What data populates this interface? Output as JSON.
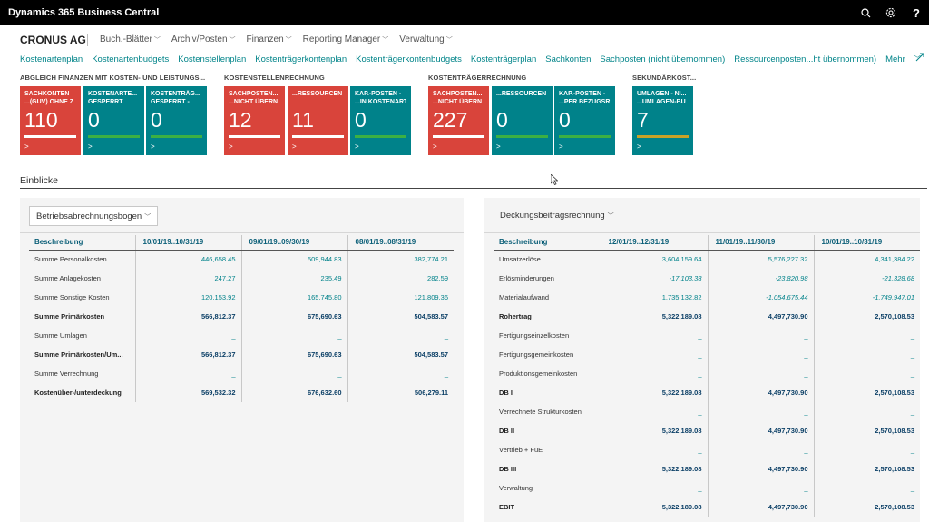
{
  "app": {
    "title": "Dynamics 365 Business Central"
  },
  "topbar": {
    "icons": [
      {
        "name": "search-icon",
        "glyph": "⌕"
      },
      {
        "name": "gear-icon",
        "glyph": "⚙"
      },
      {
        "name": "help-icon",
        "glyph": "?"
      }
    ]
  },
  "company": "CRONUS AG",
  "menu": [
    {
      "label": "Buch.-Blätter"
    },
    {
      "label": "Archiv/Posten"
    },
    {
      "label": "Finanzen"
    },
    {
      "label": "Reporting Manager"
    },
    {
      "label": "Verwaltung"
    }
  ],
  "links": [
    "Kostenartenplan",
    "Kostenartenbudgets",
    "Kostenstellenplan",
    "Kostenträgerkontenplan",
    "Kostenträgerkontenbudgets",
    "Kostenträgerplan",
    "Sachkonten",
    "Sachposten (nicht übernommen)",
    "Ressourcenposten...ht übernommen)",
    "Mehr"
  ],
  "tile_groups": [
    {
      "title": "ABGLEICH FINANZEN MIT KOSTEN- UND LEISTUNGS..."
    },
    {
      "title": "KOSTENSTELLENRECHNUNG"
    },
    {
      "title": "KOSTENTRÄGERRECHNUNG"
    },
    {
      "title": "SEKUNDÄRKOST..."
    }
  ],
  "tiles": [
    {
      "l1": "SACHKONTEN",
      "l2": "...(GUV) OHNE Z",
      "value": "110",
      "color": "red",
      "bar": "#ffffff"
    },
    {
      "l1": "KOSTENARTE...",
      "l2": "GESPERRT",
      "value": "0",
      "color": "teal",
      "bar": "#3cb043"
    },
    {
      "l1": "KOSTENTRÄG...",
      "l2": "GESPERRT -",
      "value": "0",
      "color": "teal",
      "bar": "#3cb043"
    },
    {
      "l1": "SACHPOSTEN...",
      "l2": "...NICHT ÜBERN",
      "value": "12",
      "color": "red",
      "bar": "#ffffff"
    },
    {
      "l1": "",
      "l2": "...RESSOURCEN",
      "value": "11",
      "color": "red",
      "bar": "#ffffff"
    },
    {
      "l1": "KAP.-POSTEN -",
      "l2": "...IN KOSTENART",
      "value": "0",
      "color": "teal",
      "bar": "#3cb043"
    },
    {
      "l1": "SACHPOSTEN...",
      "l2": "...NICHT ÜBERN",
      "value": "227",
      "color": "red",
      "bar": "#ffffff"
    },
    {
      "l1": "",
      "l2": "...RESSOURCEN",
      "value": "0",
      "color": "teal",
      "bar": "#3cb043"
    },
    {
      "l1": "KAP.-POSTEN -",
      "l2": "...PER BEZUGSR",
      "value": "0",
      "color": "teal",
      "bar": "#3cb043"
    },
    {
      "l1": "UMLAGEN - NI...",
      "l2": "...UMLAGEN-BU",
      "value": "7",
      "color": "teal",
      "bar": "#c9a227"
    }
  ],
  "section_title": "Einblicke",
  "left_panel": {
    "dropdown": "Betriebsabrechnungsbogen",
    "headers": [
      "Beschreibung",
      "10/01/19..10/31/19",
      "09/01/19..09/30/19",
      "08/01/19..08/31/19"
    ],
    "rows": [
      {
        "label": "Summe Personalkosten",
        "bold": false,
        "v": [
          "446,658.45",
          "509,944.83",
          "382,774.21"
        ]
      },
      {
        "label": "Summe Anlagekosten",
        "bold": false,
        "v": [
          "247.27",
          "235.49",
          "282.59"
        ]
      },
      {
        "label": "Summe Sonstige Kosten",
        "bold": false,
        "v": [
          "120,153.92",
          "165,745.80",
          "121,809.36"
        ]
      },
      {
        "label": "Summe Primärkosten",
        "bold": true,
        "v": [
          "566,812.37",
          "675,690.63",
          "504,583.57"
        ]
      },
      {
        "label": "Summe Umlagen",
        "bold": false,
        "v": [
          "_",
          "_",
          "_"
        ]
      },
      {
        "label": "Summe Primärkosten/Um...",
        "bold": true,
        "v": [
          "566,812.37",
          "675,690.63",
          "504,583.57"
        ]
      },
      {
        "label": "Summe Verrechnung",
        "bold": false,
        "v": [
          "_",
          "_",
          "_"
        ]
      },
      {
        "label": "Kostenüber-/unterdeckung",
        "bold": true,
        "v": [
          "569,532.32",
          "676,632.60",
          "506,279.11"
        ]
      }
    ]
  },
  "right_panel": {
    "dropdown": "Deckungsbeitragsrechnung",
    "headers": [
      "Beschreibung",
      "12/01/19..12/31/19",
      "11/01/19..11/30/19",
      "10/01/19..10/31/19"
    ],
    "rows": [
      {
        "label": "Umsatzerlöse",
        "bold": false,
        "v": [
          "3,604,159.64",
          "5,576,227.32",
          "4,341,384.22"
        ]
      },
      {
        "label": "Erlösminderungen",
        "bold": false,
        "v": [
          "-17,103.38",
          "-23,820.98",
          "-21,328.68"
        ]
      },
      {
        "label": "Materialaufwand",
        "bold": false,
        "v": [
          "1,735,132.82",
          "-1,054,675.44",
          "-1,749,947.01"
        ]
      },
      {
        "label": "Rohertrag",
        "bold": true,
        "v": [
          "5,322,189.08",
          "4,497,730.90",
          "2,570,108.53"
        ]
      },
      {
        "label": "Fertigungseinzelkosten",
        "bold": false,
        "v": [
          "_",
          "_",
          "_"
        ]
      },
      {
        "label": "Fertigungsgemeinkosten",
        "bold": false,
        "v": [
          "_",
          "_",
          "_"
        ]
      },
      {
        "label": "Produktionsgemeinkosten",
        "bold": false,
        "v": [
          "_",
          "_",
          "_"
        ]
      },
      {
        "label": "DB I",
        "bold": true,
        "v": [
          "5,322,189.08",
          "4,497,730.90",
          "2,570,108.53"
        ]
      },
      {
        "label": "Verrechnete Strukturkosten",
        "bold": false,
        "v": [
          "_",
          "_",
          "_"
        ]
      },
      {
        "label": "DB II",
        "bold": true,
        "v": [
          "5,322,189.08",
          "4,497,730.90",
          "2,570,108.53"
        ]
      },
      {
        "label": "Vertrieb + FuE",
        "bold": false,
        "v": [
          "_",
          "_",
          "_"
        ]
      },
      {
        "label": "DB III",
        "bold": true,
        "v": [
          "5,322,189.08",
          "4,497,730.90",
          "2,570,108.53"
        ]
      },
      {
        "label": "Verwaltung",
        "bold": false,
        "v": [
          "_",
          "_",
          "_"
        ]
      },
      {
        "label": "EBIT",
        "bold": true,
        "v": [
          "5,322,189.08",
          "4,497,730.90",
          "2,570,108.53"
        ]
      }
    ]
  }
}
